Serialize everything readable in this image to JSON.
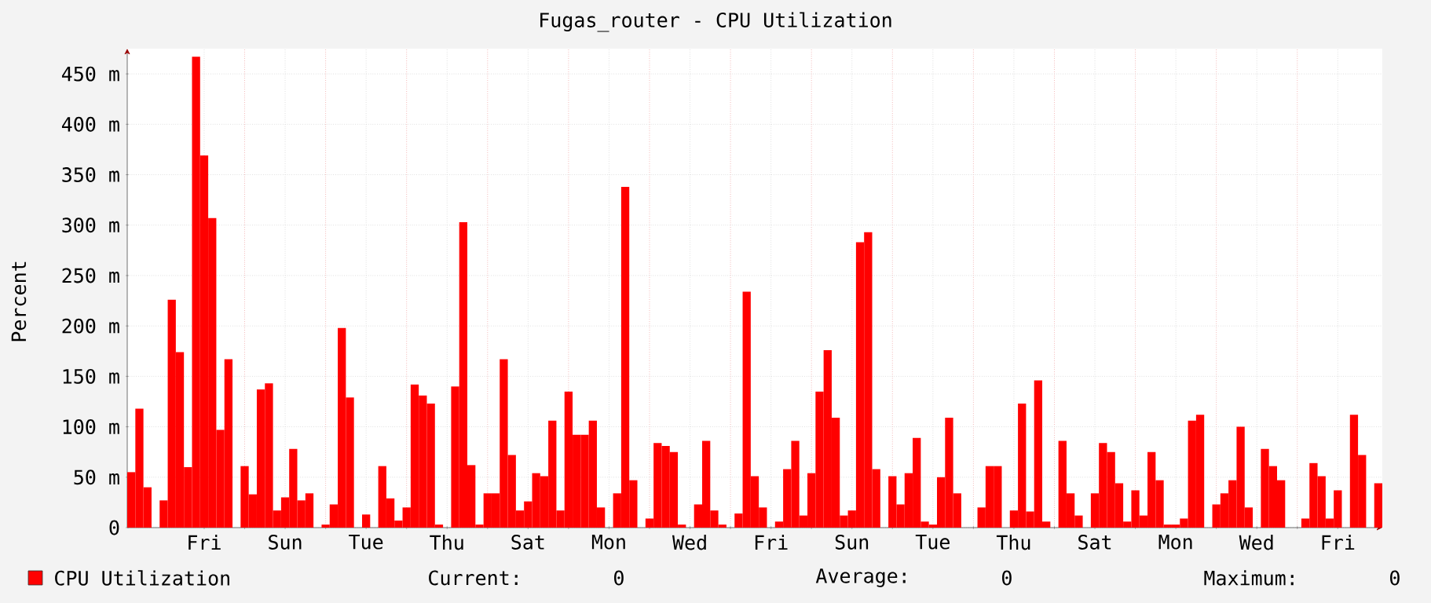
{
  "chart_data": {
    "type": "bar",
    "title": "Fugas_router - CPU Utilization",
    "ylabel": "Percent",
    "categories": [
      null,
      null,
      null,
      null,
      null,
      null,
      null,
      null,
      null,
      "Fri",
      null,
      null,
      null,
      null,
      null,
      null,
      null,
      null,
      null,
      "Sun",
      null,
      null,
      null,
      null,
      null,
      null,
      null,
      null,
      null,
      "Tue",
      null,
      null,
      null,
      null,
      null,
      null,
      null,
      null,
      null,
      "Thu",
      null,
      null,
      null,
      null,
      null,
      null,
      null,
      null,
      null,
      "Sat",
      null,
      null,
      null,
      null,
      null,
      null,
      null,
      null,
      null,
      "Mon",
      null,
      null,
      null,
      null,
      null,
      null,
      null,
      null,
      null,
      "Wed",
      null,
      null,
      null,
      null,
      null,
      null,
      null,
      null,
      null,
      "Fri",
      null,
      null,
      null,
      null,
      null,
      null,
      null,
      null,
      null,
      "Sun",
      null,
      null,
      null,
      null,
      null,
      null,
      null,
      null,
      null,
      "Tue",
      null,
      null,
      null,
      null,
      null,
      null,
      null,
      null,
      null,
      "Thu",
      null,
      null,
      null,
      null,
      null,
      null,
      null,
      null,
      null,
      "Sat",
      null,
      null,
      null,
      null,
      null,
      null,
      null,
      null,
      null,
      "Mon",
      null,
      null,
      null,
      null,
      null,
      null,
      null,
      null,
      null,
      "Wed",
      null,
      null,
      null,
      null,
      null,
      null,
      null,
      null,
      null,
      "Fri",
      null,
      null,
      null,
      null,
      null
    ],
    "series": [
      {
        "name": "CPU Utilization",
        "color": "#ff0000",
        "values": [
          55,
          118,
          40,
          0,
          27,
          226,
          174,
          60,
          467,
          369,
          307,
          97,
          167,
          0,
          61,
          33,
          137,
          143,
          17,
          30,
          78,
          27,
          34,
          0,
          3,
          23,
          198,
          129,
          0,
          13,
          0,
          61,
          29,
          7,
          20,
          142,
          131,
          123,
          3,
          0,
          140,
          303,
          62,
          3,
          34,
          34,
          167,
          72,
          17,
          26,
          54,
          51,
          106,
          17,
          135,
          92,
          92,
          106,
          20,
          0,
          34,
          338,
          47,
          0,
          9,
          84,
          81,
          75,
          3,
          0,
          23,
          86,
          17,
          3,
          0,
          14,
          234,
          51,
          20,
          0,
          6,
          58,
          86,
          12,
          54,
          135,
          176,
          109,
          12,
          17,
          283,
          293,
          58,
          0,
          51,
          23,
          54,
          89,
          6,
          3,
          50,
          109,
          34,
          0,
          0,
          20,
          61,
          61,
          0,
          17,
          123,
          16,
          146,
          6,
          0,
          86,
          34,
          12,
          0,
          34,
          84,
          75,
          44,
          6,
          37,
          12,
          75,
          47,
          3,
          3,
          9,
          106,
          112,
          0,
          23,
          34,
          47,
          100,
          20,
          0,
          78,
          61,
          47,
          0,
          0,
          9,
          64,
          51,
          9,
          37,
          0,
          112,
          72,
          0,
          44
        ]
      }
    ],
    "ylim": [
      0,
      475
    ],
    "yticks": [
      0,
      {
        "value": 50,
        "label": "50 m"
      },
      {
        "value": 100,
        "label": "100 m"
      },
      {
        "value": 150,
        "label": "150 m"
      },
      {
        "value": 200,
        "label": "200 m"
      },
      {
        "value": 250,
        "label": "250 m"
      },
      {
        "value": 300,
        "label": "300 m"
      },
      {
        "value": 350,
        "label": "350 m"
      },
      {
        "value": 400,
        "label": "400 m"
      },
      {
        "value": 450,
        "label": "450 m"
      }
    ],
    "grid": true,
    "legend": "bottom left",
    "annotations": [
      "Current:",
      "0",
      "Average:",
      "0",
      "Maximum:",
      "0"
    ]
  }
}
